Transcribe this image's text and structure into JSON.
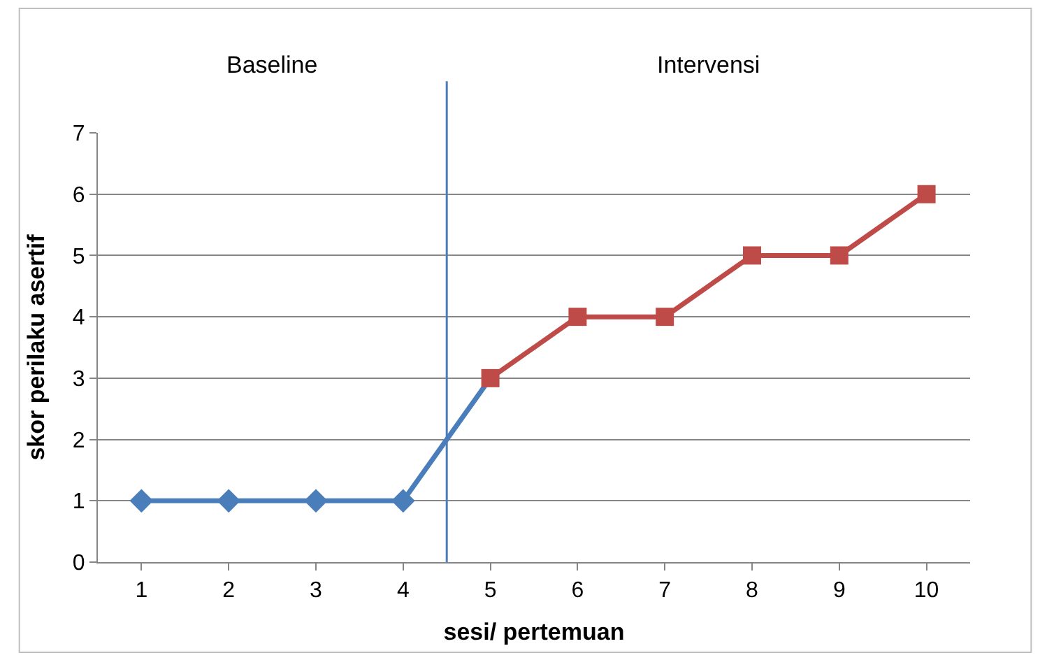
{
  "chart_data": {
    "type": "line",
    "xlabel": "sesi/ pertemuan",
    "ylabel": "skor perilaku asertif",
    "x": [
      1,
      2,
      3,
      4,
      5,
      6,
      7,
      8,
      9,
      10
    ],
    "xlim": [
      0.5,
      10.5
    ],
    "xticks": [
      1,
      2,
      3,
      4,
      5,
      6,
      7,
      8,
      9,
      10
    ],
    "ylim": [
      0,
      7
    ],
    "yticks": [
      0,
      1,
      2,
      3,
      4,
      5,
      6,
      7
    ],
    "grid": "y",
    "series": [
      {
        "color": "#4a7ebb",
        "marker": "diamond",
        "values": [
          1,
          1,
          1,
          1,
          3,
          null,
          null,
          null,
          null,
          null
        ]
      },
      {
        "color": "#be4b48",
        "marker": "square",
        "values": [
          null,
          null,
          null,
          null,
          3,
          4,
          4,
          5,
          5,
          6
        ]
      }
    ],
    "ref_lines": [
      {
        "axis": "x",
        "value": 4.5,
        "color": "#4a7ebb"
      }
    ],
    "annotations": [
      "Baseline",
      "Intervensi"
    ]
  }
}
